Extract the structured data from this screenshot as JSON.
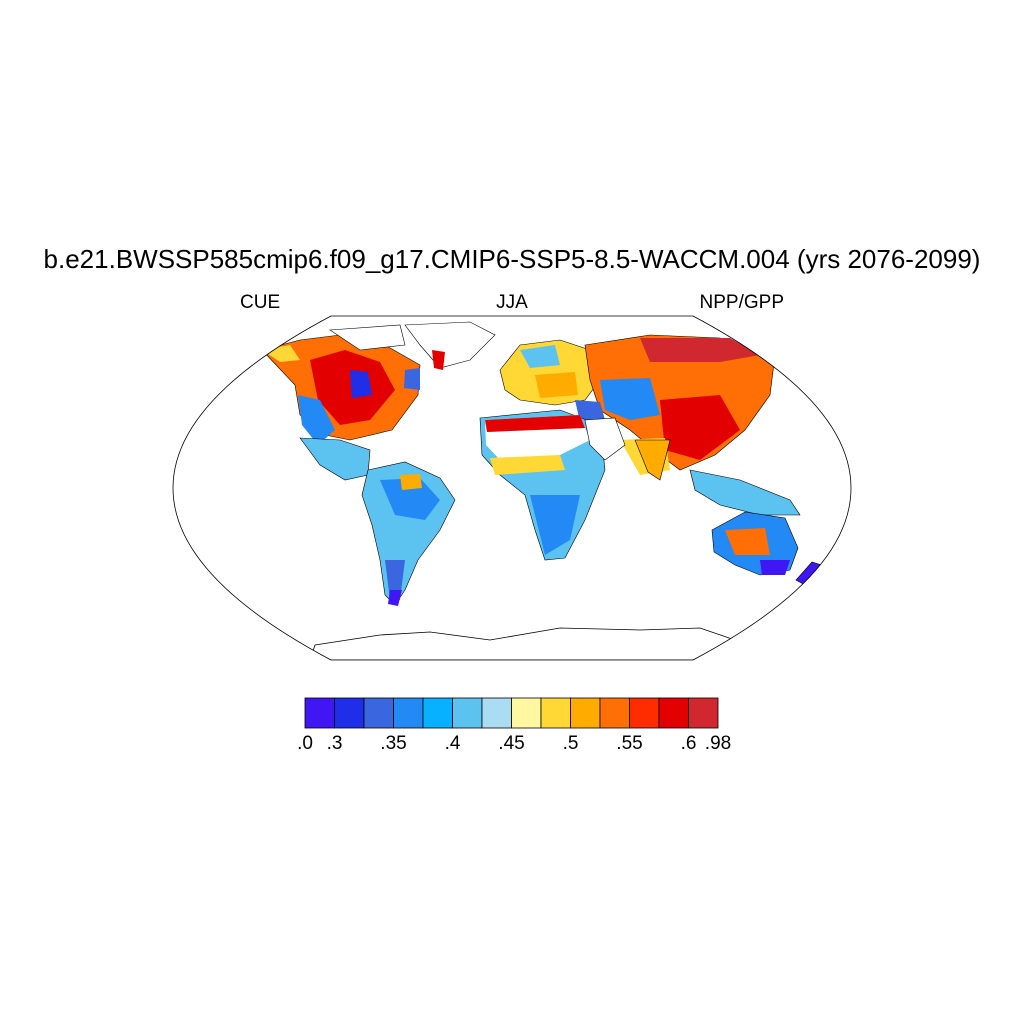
{
  "title": "b.e21.BWSSP585cmip6.f09_g17.CMIP6-SSP5-8.5-WACCM.004 (yrs 2076-2099)",
  "subtitle_left": "CUE",
  "subtitle_center": "JJA",
  "subtitle_right": "NPP/GPP",
  "colorbar": {
    "colors": [
      "#4016f5",
      "#1f2ee8",
      "#3a67e0",
      "#2389f5",
      "#08b1ff",
      "#5cc2f0",
      "#aadcf2",
      "#fff8a0",
      "#ffd836",
      "#ffab00",
      "#ff6f05",
      "#ff2c00",
      "#e20000",
      "#d1282f"
    ],
    "labels": [
      ".0",
      ".3",
      ".35",
      ".4",
      ".45",
      ".5",
      ".55",
      ".6",
      ".98"
    ]
  }
}
